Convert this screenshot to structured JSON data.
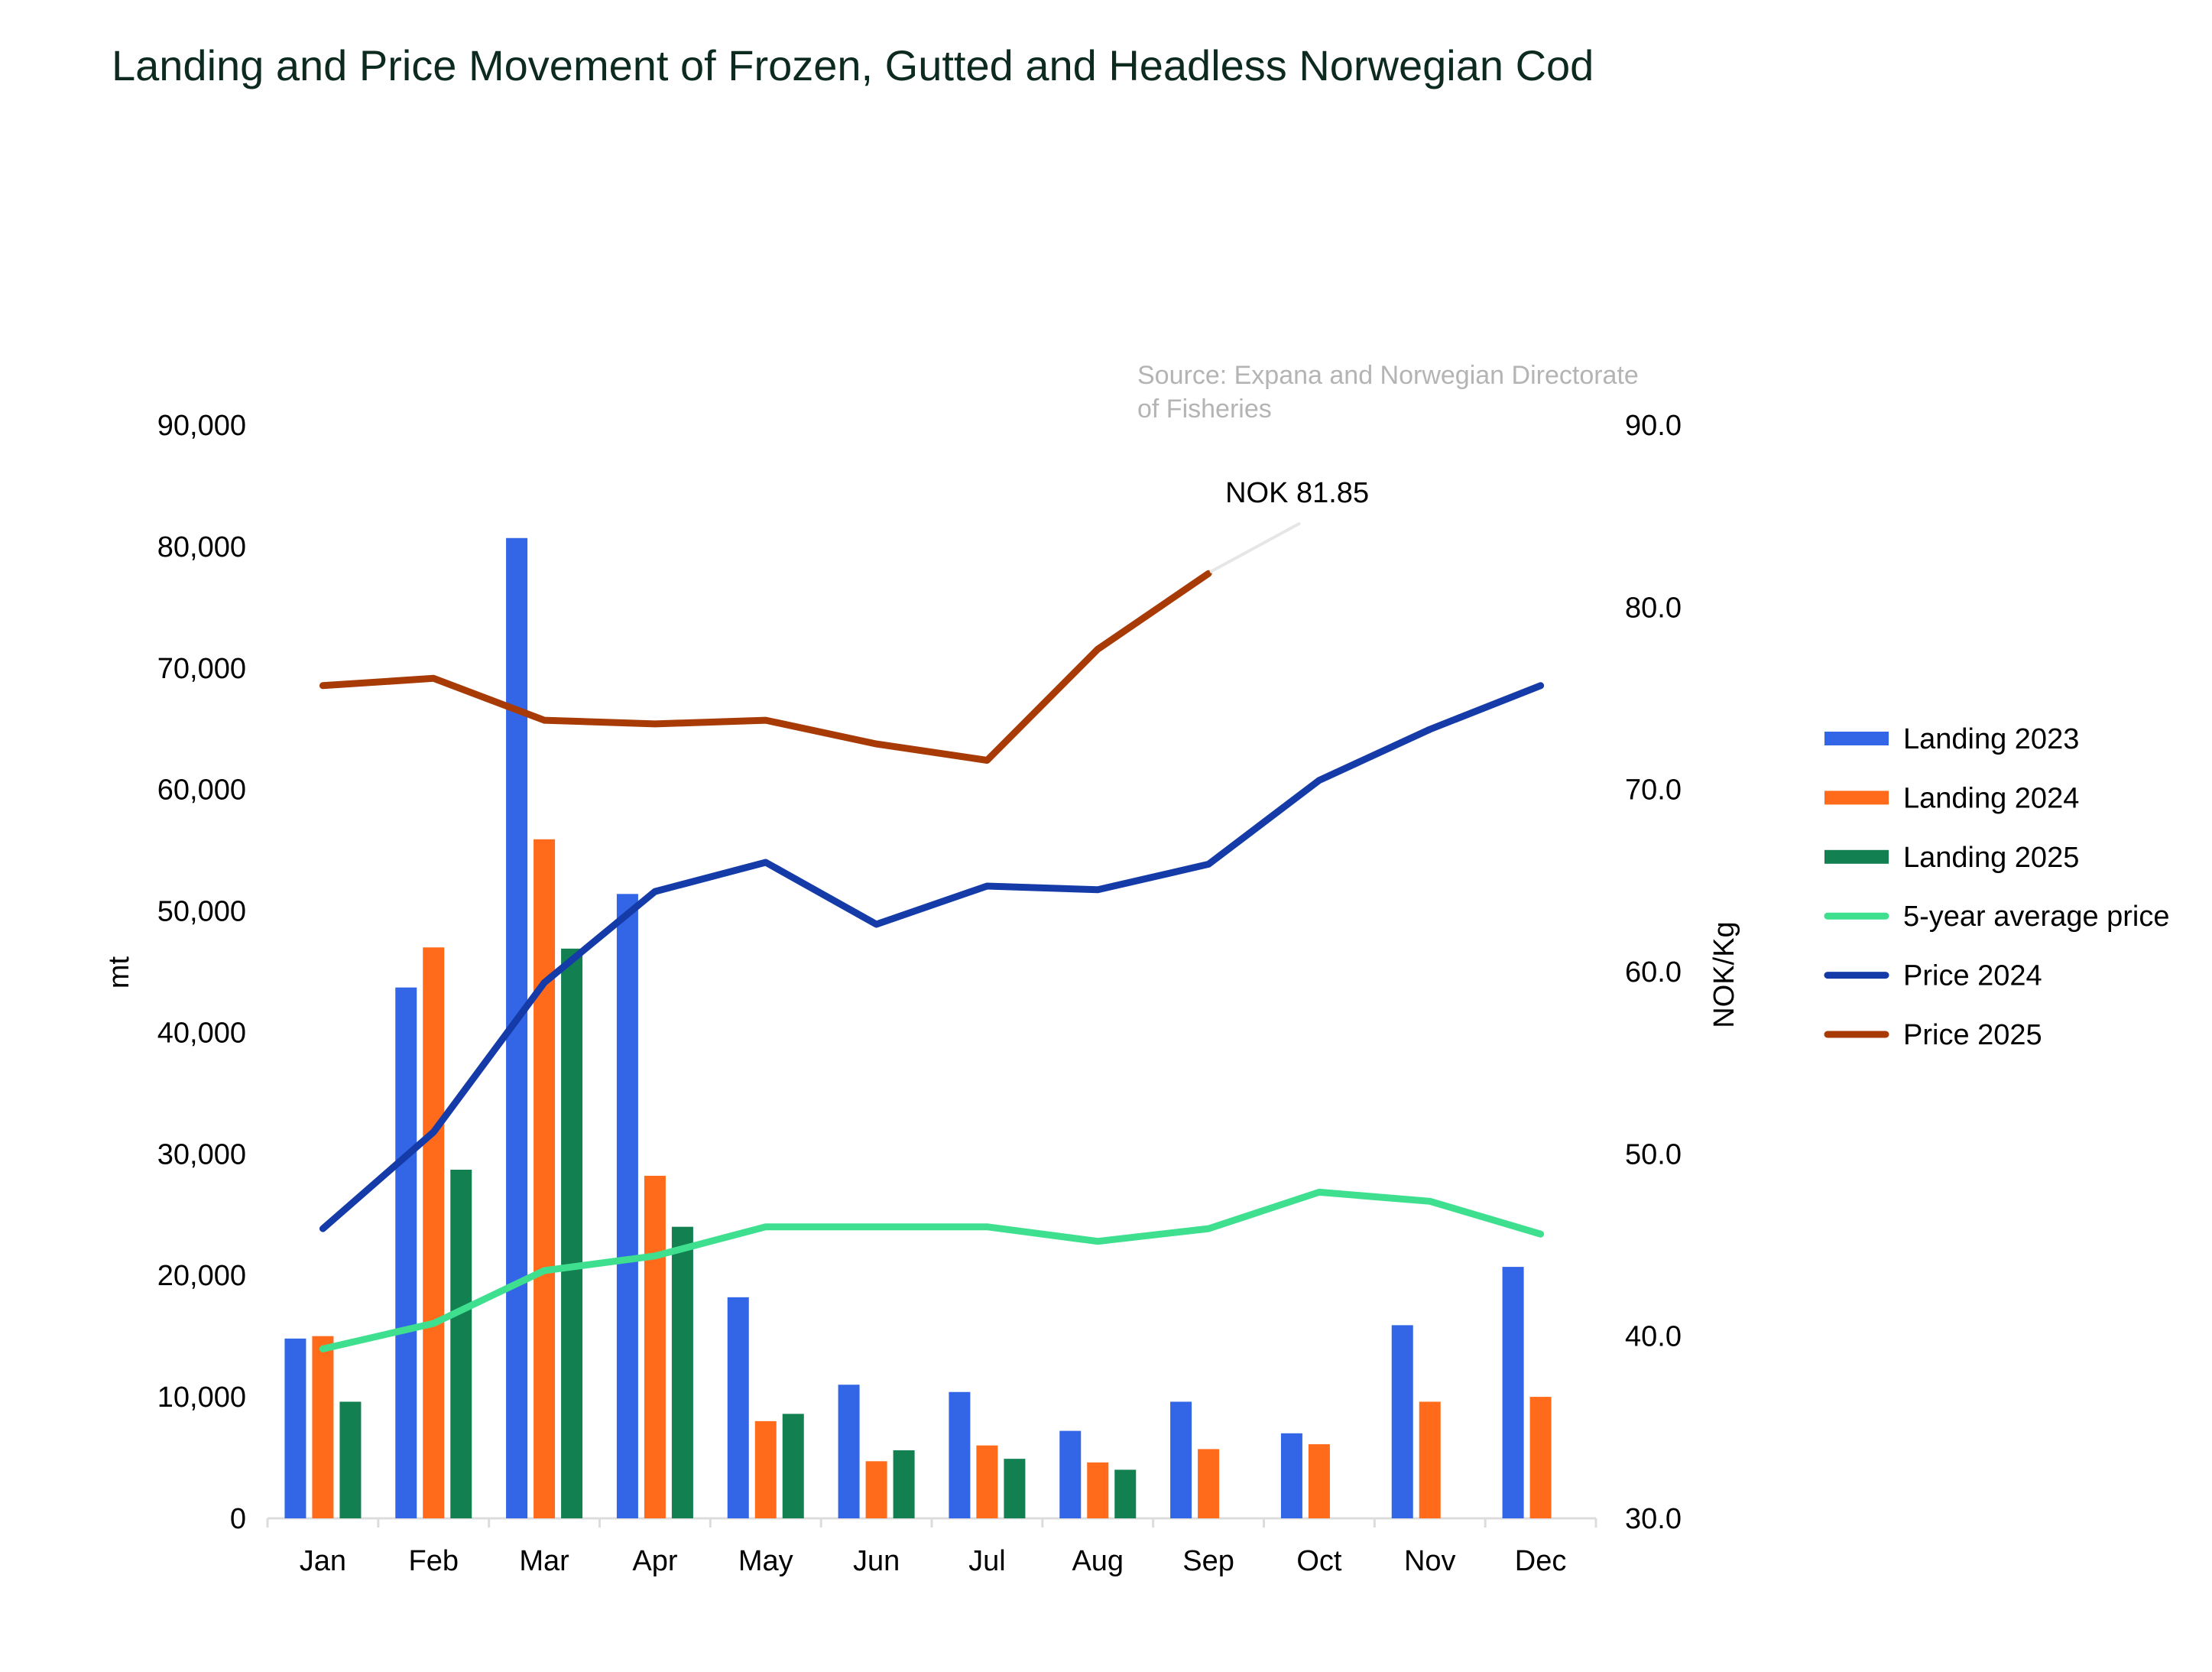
{
  "chart_data": {
    "type": "bar+line",
    "title": "Landing and Price Movement of Frozen, Gutted and Headless Norwegian Cod",
    "source": "Source: Expana and Norwegian Directorate of Fisheries",
    "source_lines": [
      "Source: Expana and Norwegian Directorate",
      "of Fisheries"
    ],
    "categories": [
      "Jan",
      "Feb",
      "Mar",
      "Apr",
      "May",
      "Jun",
      "Jul",
      "Aug",
      "Sep",
      "Oct",
      "Nov",
      "Dec"
    ],
    "left_axis": {
      "label": "mt",
      "min": 0,
      "max": 90000,
      "ticks": [
        "0",
        "10,000",
        "20,000",
        "30,000",
        "40,000",
        "50,000",
        "60,000",
        "70,000",
        "80,000",
        "90,000"
      ]
    },
    "right_axis": {
      "label": "NOK/Kg",
      "min": 30,
      "max": 90,
      "ticks": [
        "30.0",
        "40.0",
        "50.0",
        "60.0",
        "70.0",
        "80.0",
        "90.0"
      ]
    },
    "bar_series": [
      {
        "name": "Landing 2023",
        "color": "#3366e6",
        "values": [
          14800,
          43700,
          80700,
          51400,
          18200,
          11000,
          10400,
          7200,
          9600,
          7000,
          15900,
          20700
        ]
      },
      {
        "name": "Landing 2024",
        "color": "#ff6b1a",
        "values": [
          15000,
          47000,
          55900,
          28200,
          8000,
          4700,
          6000,
          4600,
          5700,
          6100,
          9600,
          10000
        ]
      },
      {
        "name": "Landing 2025",
        "color": "#128051",
        "values": [
          9600,
          28700,
          46900,
          24000,
          8600,
          5600,
          4900,
          4000,
          null,
          null,
          null,
          null
        ]
      }
    ],
    "line_series": [
      {
        "name": "5-year average price",
        "color": "#3ee08f",
        "values": [
          39.3,
          40.7,
          43.6,
          44.4,
          46.0,
          46.0,
          46.0,
          45.2,
          45.9,
          47.9,
          47.4,
          45.6
        ]
      },
      {
        "name": "Price 2024",
        "color": "#143ba8",
        "values": [
          45.9,
          51.2,
          59.4,
          64.4,
          66.0,
          62.6,
          64.7,
          64.5,
          65.9,
          70.5,
          73.3,
          75.7
        ]
      },
      {
        "name": "Price 2025",
        "color": "#a83a06",
        "values": [
          75.7,
          76.1,
          73.8,
          73.6,
          73.8,
          72.5,
          71.6,
          77.7,
          81.85,
          null,
          null,
          null
        ]
      }
    ],
    "annotation": {
      "text": "NOK 81.85",
      "series": "Price 2025",
      "category": "Sep",
      "value": 81.85
    },
    "legend_position": "right"
  }
}
